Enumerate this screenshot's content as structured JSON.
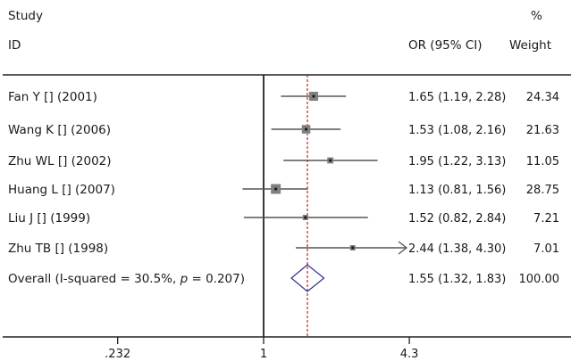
{
  "chart_data": {
    "type": "forest",
    "xscale": "log",
    "header": {
      "study_line1": "Study",
      "study_line2": "ID",
      "or_label": "OR (95% CI)",
      "weight_line1": "%",
      "weight_line2": "Weight"
    },
    "studies": [
      {
        "label": "Fan Y [] (2001)",
        "or": 1.65,
        "lo": 1.19,
        "hi": 2.28,
        "or_text": "1.65 (1.19, 2.28)",
        "weight": 24.34,
        "weight_text": "24.34"
      },
      {
        "label": "Wang K [] (2006)",
        "or": 1.53,
        "lo": 1.08,
        "hi": 2.16,
        "or_text": "1.53 (1.08, 2.16)",
        "weight": 21.63,
        "weight_text": "21.63"
      },
      {
        "label": "Zhu WL [] (2002)",
        "or": 1.95,
        "lo": 1.22,
        "hi": 3.13,
        "or_text": "1.95 (1.22, 3.13)",
        "weight": 11.05,
        "weight_text": "11.05"
      },
      {
        "label": "Huang L [] (2007)",
        "or": 1.13,
        "lo": 0.81,
        "hi": 1.56,
        "or_text": "1.13 (0.81, 1.56)",
        "weight": 28.75,
        "weight_text": "28.75"
      },
      {
        "label": "Liu J [] (1999)",
        "or": 1.52,
        "lo": 0.82,
        "hi": 2.84,
        "or_text": "1.52 (0.82, 2.84)",
        "weight": 7.21,
        "weight_text": "7.21"
      },
      {
        "label": "Zhu TB [] (1998)",
        "or": 2.44,
        "lo": 1.38,
        "hi": 4.3,
        "or_text": "2.44 (1.38, 4.30)",
        "weight": 7.01,
        "weight_text": "7.01",
        "clipped_right": true
      }
    ],
    "overall": {
      "label_prefix": "Overall (I-squared = 30.5%, ",
      "label_p": "p",
      "label_suffix": " = 0.207)",
      "or": 1.55,
      "lo": 1.32,
      "hi": 1.83,
      "or_text": "1.55 (1.32, 1.83)",
      "weight": 100.0,
      "weight_text": "100.00"
    },
    "x_ticks": [
      {
        "value": 0.232,
        "label": ".232"
      },
      {
        "value": 1,
        "label": "1"
      },
      {
        "value": 4.3,
        "label": "4.3"
      }
    ],
    "null_line": 1,
    "colors": {
      "text": "#1a1a1a",
      "ci_line": "#555555",
      "box": "#808080",
      "point": "#1a1a1a",
      "diamond": "#2b2f8f",
      "overall_line": "#cc1f1f",
      "axis": "#222222"
    }
  }
}
